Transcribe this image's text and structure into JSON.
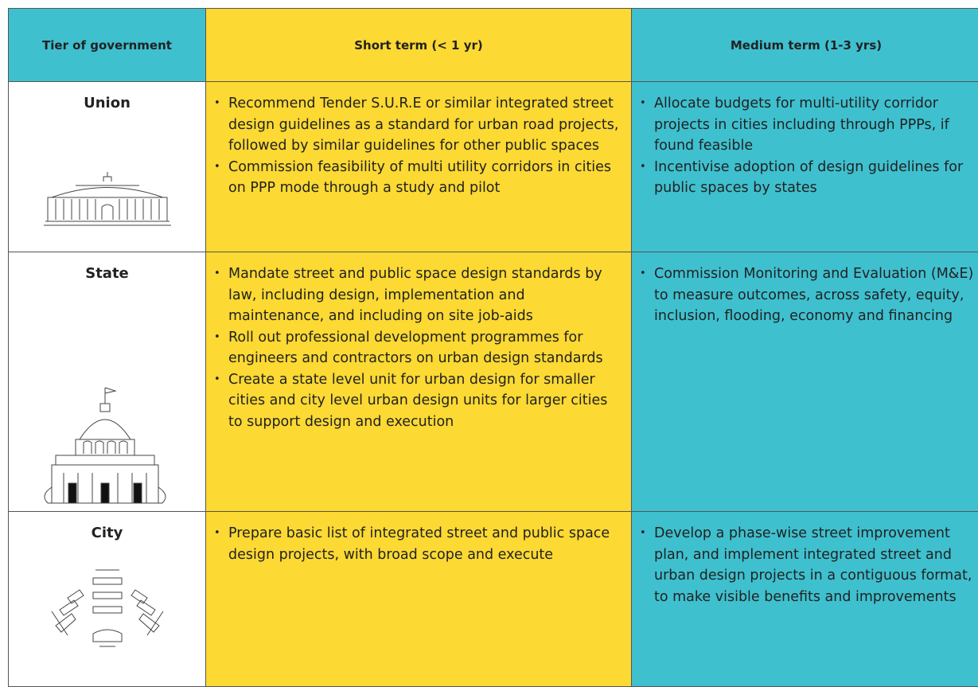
{
  "header": {
    "tier": "Tier of government",
    "short": "Short term (< 1 yr)",
    "medium": "Medium term (1-3 yrs)"
  },
  "rows": [
    {
      "tier": "Union",
      "short": [
        "Recommend Tender S.U.R.E or similar integrated street design guidelines as a standard for urban road projects, followed by similar guidelines for other public spaces",
        "Commission feasibility of multi utility corridors in cities on PPP mode through a study and pilot"
      ],
      "medium": [
        "Allocate budgets for multi-utility corridor projects in cities including through PPPs, if found feasible",
        "Incentivise adoption of design guidelines for public spaces by states"
      ]
    },
    {
      "tier": "State",
      "short": [
        "Mandate street and public space design standards by law, including design, implementation and maintenance, and including on site job-aids",
        "Roll out professional development programmes for engineers and contractors on urban design standards",
        "Create a state level unit for urban design for smaller cities and city level urban design units for larger cities to support design and execution"
      ],
      "medium": [
        "Commission Monitoring and Evaluation (M&E) to measure outcomes, across safety, equity, inclusion, flooding, economy and financing"
      ]
    },
    {
      "tier": "City",
      "short": [
        "Prepare basic list of integrated street and public space design projects, with broad scope and execute"
      ],
      "medium": [
        "Develop a phase-wise street improvement plan, and implement integrated street and urban design projects in a contiguous format, to make visible benefits and improvements"
      ]
    }
  ]
}
